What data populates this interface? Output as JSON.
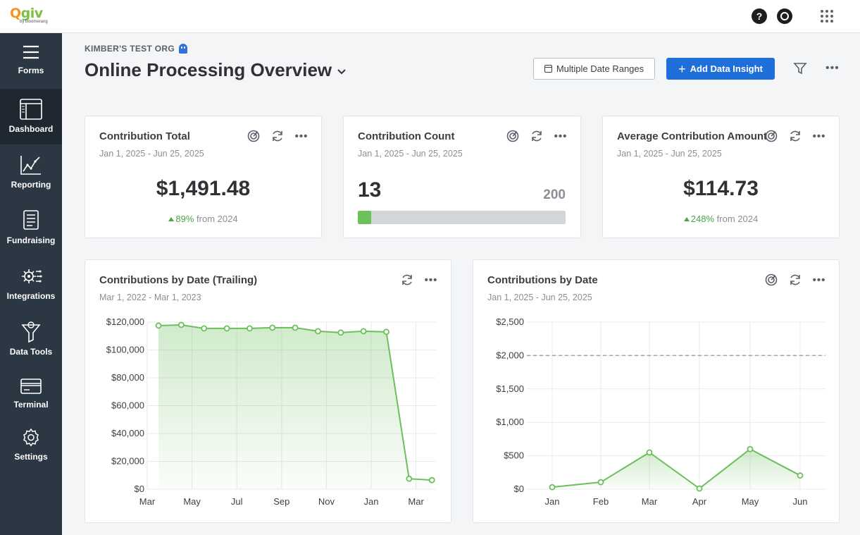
{
  "app": {
    "logo_brand": "Qgiv",
    "logo_by": "by bloomerang"
  },
  "topbar": {
    "help_label": "?"
  },
  "sidebar": {
    "items": [
      {
        "label": "Forms",
        "icon": "menu-icon"
      },
      {
        "label": "Dashboard",
        "icon": "dashboard-icon",
        "active": true
      },
      {
        "label": "Reporting",
        "icon": "chart-icon"
      },
      {
        "label": "Fundraising",
        "icon": "document-icon"
      },
      {
        "label": "Integrations",
        "icon": "integrations-icon"
      },
      {
        "label": "Data Tools",
        "icon": "funnel-icon"
      },
      {
        "label": "Terminal",
        "icon": "card-icon"
      },
      {
        "label": "Settings",
        "icon": "gear-icon"
      }
    ]
  },
  "header": {
    "org_name": "KIMBER'S TEST ORG",
    "title": "Online Processing Overview",
    "date_button": "Multiple Date Ranges",
    "add_button": "Add Data Insight"
  },
  "cards": {
    "total": {
      "title": "Contribution Total",
      "date_range": "Jan 1, 2025 - Jun 25, 2025",
      "value": "$1,491.48",
      "change": "89%",
      "change_suffix": "from 2024"
    },
    "count": {
      "title": "Contribution Count",
      "date_range": "Jan 1, 2025 - Jun 25, 2025",
      "value": "13",
      "target": "200",
      "progress": 0.065
    },
    "average": {
      "title": "Average Contribution Amount",
      "date_range": "Jan 1, 2025 - Jun 25, 2025",
      "value": "$114.73",
      "change": "248%",
      "change_suffix": "from 2024"
    }
  },
  "chart_data": [
    {
      "type": "area",
      "title": "Contributions by Date (Trailing)",
      "subtitle": "Mar 1, 2022 - Mar 1, 2023",
      "x": [
        0,
        1,
        2,
        3,
        4,
        5,
        6,
        7,
        8,
        9,
        10,
        11,
        12
      ],
      "values": [
        117500,
        118000,
        115500,
        115500,
        115500,
        116000,
        116000,
        113500,
        112500,
        113500,
        113000,
        7500,
        6500
      ],
      "x_tick_labels": [
        "Mar",
        "May",
        "Jul",
        "Sep",
        "Nov",
        "Jan",
        "Mar"
      ],
      "x_tick_positions": [
        0,
        2,
        4,
        6,
        8,
        10,
        12
      ],
      "y_tick_labels": [
        "$120,000",
        "$100,000",
        "$80,000",
        "$60,000",
        "$40,000",
        "$20,000",
        "$0"
      ],
      "ylim": [
        0,
        120000
      ],
      "grid": true,
      "color": "#6cbf5c"
    },
    {
      "type": "area",
      "title": "Contributions by Date",
      "subtitle": "Jan 1, 2025 - Jun 25, 2025",
      "categories": [
        "Jan",
        "Feb",
        "Mar",
        "Apr",
        "May",
        "Jun"
      ],
      "values": [
        30,
        105,
        550,
        10,
        600,
        205
      ],
      "goal_line": 2000,
      "y_tick_labels": [
        "$2,500",
        "$2,000",
        "$1,500",
        "$1,000",
        "$500",
        "$0"
      ],
      "ylim": [
        0,
        2500
      ],
      "grid": true,
      "color": "#6cbf5c"
    }
  ]
}
